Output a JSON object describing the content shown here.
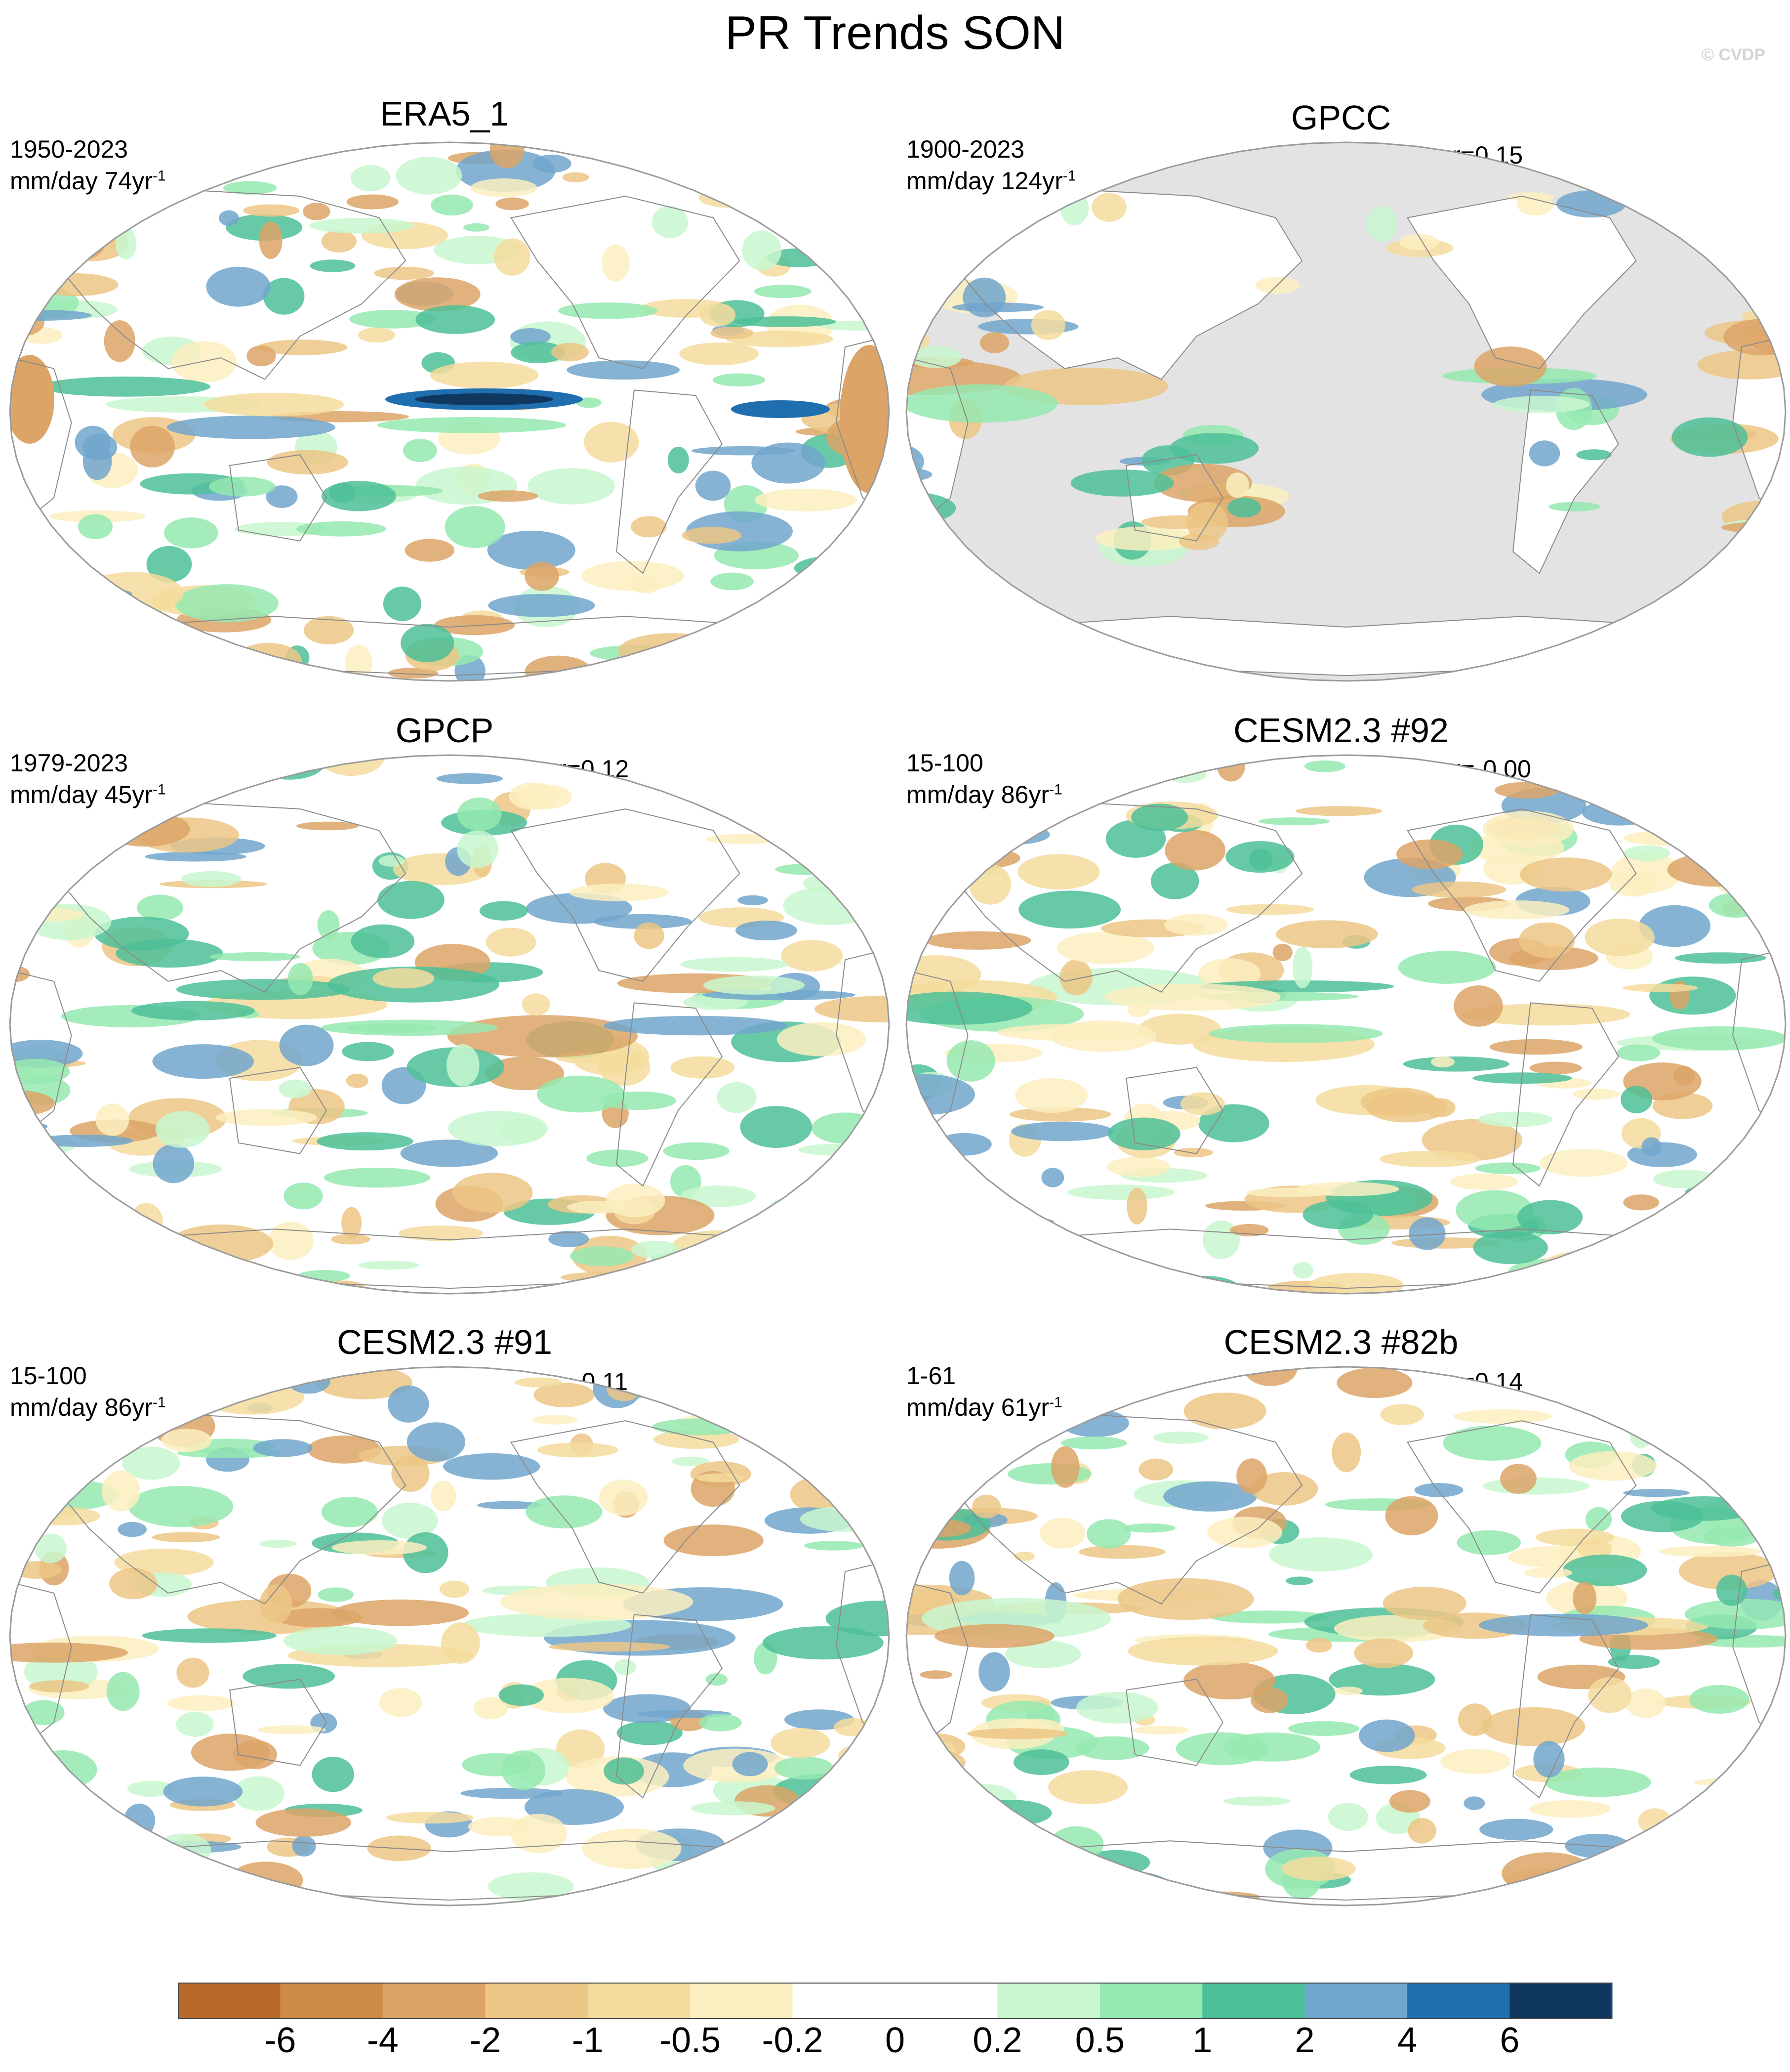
{
  "title": "PR Trends SON",
  "watermark": "© CVDP",
  "panels": [
    {
      "name": "ERA5_1",
      "period": "1950-2023",
      "units_prefix": "mm/day 74yr",
      "units_exp": "-1",
      "corr": "",
      "ocean_masked": false
    },
    {
      "name": "GPCC",
      "period": "1900-2023",
      "units_prefix": "mm/day 124yr",
      "units_exp": "-1",
      "corr": "r=0.15",
      "ocean_masked": true
    },
    {
      "name": "GPCP",
      "period": "1979-2023",
      "units_prefix": "mm/day 45yr",
      "units_exp": "-1",
      "corr": "r=0.12",
      "ocean_masked": false
    },
    {
      "name": "CESM2.3 #92",
      "period": "15-100",
      "units_prefix": "mm/day 86yr",
      "units_exp": "-1",
      "corr": "r=-0.00",
      "ocean_masked": false
    },
    {
      "name": "CESM2.3 #91",
      "period": "15-100",
      "units_prefix": "mm/day 86yr",
      "units_exp": "-1",
      "corr": "r=-0.11",
      "ocean_masked": false
    },
    {
      "name": "CESM2.3 #82b",
      "period": "1-61",
      "units_prefix": "mm/day 61yr",
      "units_exp": "-1",
      "corr": "r=0.14",
      "ocean_masked": false
    }
  ],
  "colorbar": {
    "labels": [
      "-6",
      "-4",
      "-2",
      "-1",
      "-0.5",
      "-0.2",
      "0",
      "0.2",
      "0.5",
      "1",
      "2",
      "4",
      "6"
    ],
    "colors": [
      "#b8692a",
      "#cc8c47",
      "#dca467",
      "#ecc685",
      "#f4dc9e",
      "#fbeebf",
      "#ffffff",
      "#ffffff",
      "#c9f7cf",
      "#95e9b0",
      "#4dbf98",
      "#71a6cc",
      "#1f6fb0",
      "#10385f"
    ]
  },
  "colors": {
    "ocean_mask": "#e3e3e3",
    "land_outline": "#8a8a8a",
    "map_border": "#9a9a9a"
  }
}
